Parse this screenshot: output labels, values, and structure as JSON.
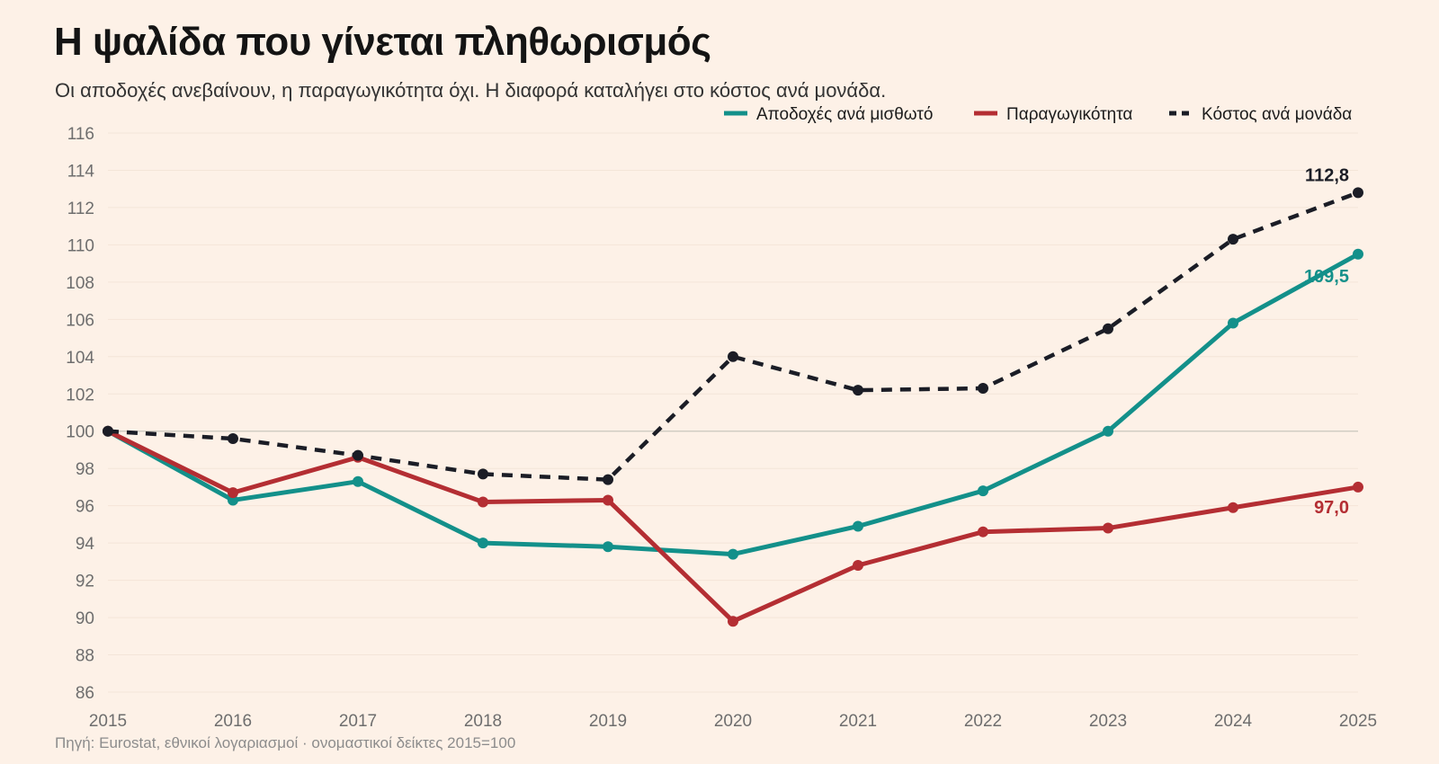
{
  "title": "Η ψαλίδα που γίνεται πληθωρισμός",
  "subtitle": "Οι αποδοχές ανεβαίνουν, η παραγωγικότητα όχι. Η διαφορά καταλήγει στο κόστος ανά μονάδα.",
  "source": "Πηγή: Eurostat, εθνικοί λογαριασμοί · ονομαστικοί δείκτες 2015=100",
  "chart_data": {
    "type": "line",
    "title": "Η ψαλίδα που γίνεται πληθωρισμός",
    "subtitle": "Οι αποδοχές ανεβαίνουν, η παραγωγικότητα όχι. Η διαφορά καταλήγει στο κόστος ανά μονάδα.",
    "xlabel": "",
    "ylabel": "",
    "x": [
      "2015",
      "2016",
      "2017",
      "2018",
      "2019",
      "2020",
      "2021",
      "2022",
      "2023",
      "2024",
      "2025"
    ],
    "ylim": [
      86,
      116
    ],
    "yticks": [
      "86",
      "88",
      "90",
      "92",
      "94",
      "96",
      "98",
      "100",
      "102",
      "104",
      "106",
      "108",
      "110",
      "112",
      "114",
      "116"
    ],
    "reference_line": 100,
    "grid": true,
    "legend_position": "top-right",
    "series": [
      {
        "name": "Αποδοχές ανά μισθωτό",
        "color": "#13908a",
        "style": "solid",
        "values": [
          100,
          96.3,
          97.3,
          94.0,
          93.8,
          93.4,
          94.9,
          96.8,
          100.0,
          105.8,
          109.5
        ],
        "end_label": "109,5"
      },
      {
        "name": "Παραγωγικότητα",
        "color": "#b42e33",
        "style": "solid",
        "values": [
          100,
          96.7,
          98.6,
          96.2,
          96.3,
          89.8,
          92.8,
          94.6,
          94.8,
          95.9,
          97.0
        ],
        "end_label": "97,0"
      },
      {
        "name": "Κόστος ανά μονάδα",
        "color": "#1b1d26",
        "style": "dashed",
        "values": [
          100,
          99.6,
          98.7,
          97.7,
          97.4,
          104.0,
          102.2,
          102.3,
          105.5,
          110.3,
          112.8
        ],
        "end_label": "112,8"
      }
    ]
  }
}
